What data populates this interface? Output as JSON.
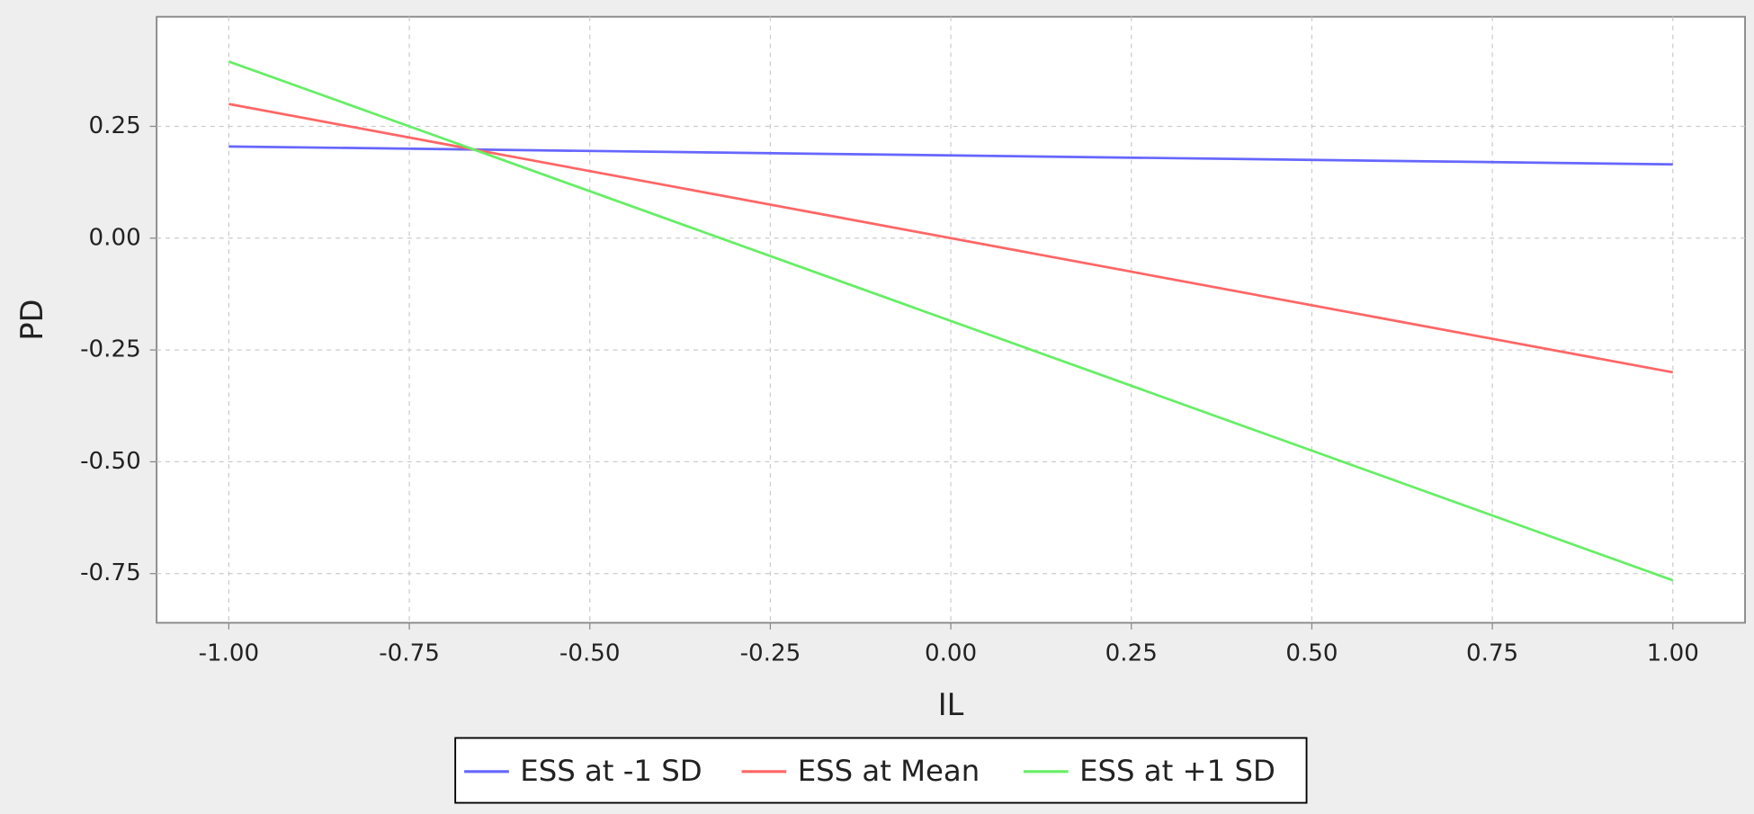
{
  "chart_data": {
    "type": "line",
    "x_label": "IL",
    "y_label": "PD",
    "x": [
      -1,
      1
    ],
    "series": [
      {
        "name": "ESS at -1 SD",
        "color": "#6666ff",
        "values": [
          0.205,
          0.165
        ]
      },
      {
        "name": "ESS at Mean",
        "color": "#ff6666",
        "values": [
          0.3,
          -0.3
        ]
      },
      {
        "name": "ESS at +1 SD",
        "color": "#66ee66",
        "values": [
          0.395,
          -0.765
        ]
      }
    ],
    "xlim": [
      -1.1,
      1.1
    ],
    "xticks": [
      {
        "value": -1,
        "label": "-1.00"
      },
      -0.75,
      {
        "value": -0.5,
        "label": "-0.50"
      },
      -0.25,
      {
        "value": 0,
        "label": "0.00"
      },
      0.25,
      {
        "value": 0.5,
        "label": "0.50"
      },
      0.75,
      {
        "value": 1,
        "label": "1.00"
      }
    ],
    "ylim": [
      -0.86,
      0.495
    ],
    "yticks": [
      0.25,
      {
        "value": 0,
        "label": "0.00"
      },
      -0.25,
      {
        "value": -0.5,
        "label": "-0.50"
      },
      -0.75
    ],
    "grid": true
  }
}
